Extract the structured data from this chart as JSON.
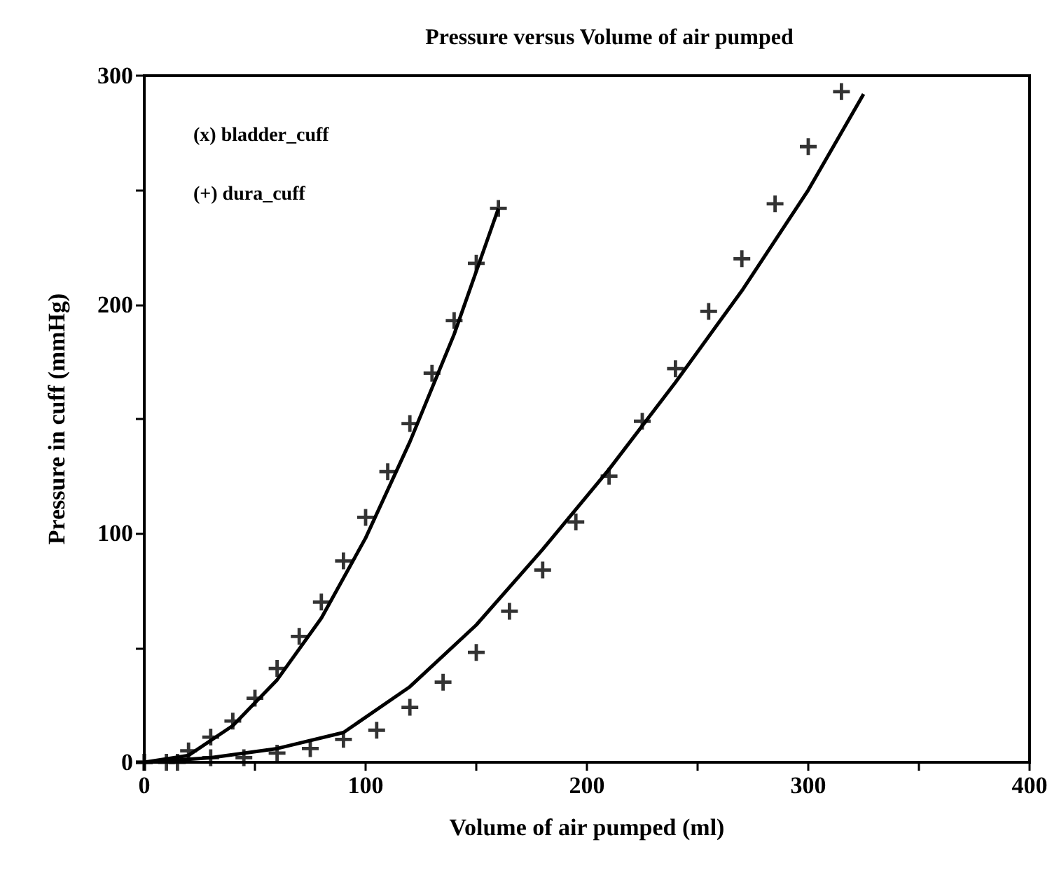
{
  "chart_data": {
    "type": "scatter",
    "title": "Pressure versus Volume of air pumped",
    "xlabel": "Volume of air pumped (ml)",
    "ylabel": "Pressure in cuff (mmHg)",
    "annotations": [
      "(x) bladder_cuff",
      "(+) dura_cuff"
    ],
    "xlim": [
      0,
      400
    ],
    "xticks": [
      0,
      {
        "value": 50,
        "label": null
      },
      100,
      {
        "value": 150,
        "label": null
      },
      200,
      {
        "value": 250,
        "label": null
      },
      300,
      {
        "value": 350,
        "label": null
      },
      400
    ],
    "ylim": [
      0,
      300
    ],
    "yticks": [
      0,
      {
        "value": 50,
        "label": null
      },
      100,
      {
        "value": 150,
        "label": null
      },
      200,
      {
        "value": 250,
        "label": null
      },
      300
    ],
    "grid": false,
    "marker": "cross",
    "series": [
      {
        "color": "#000000",
        "x": [
          0,
          15,
          30,
          45,
          60,
          75,
          90,
          105,
          120,
          135,
          150,
          165,
          180,
          195,
          210,
          225,
          240,
          255,
          270,
          285,
          300,
          315
        ],
        "values": [
          0,
          0,
          2,
          2,
          4,
          6,
          10,
          14,
          24,
          35,
          48,
          66,
          84,
          105,
          125,
          149,
          172,
          197,
          220,
          244,
          269,
          293
        ]
      },
      {
        "color": "#000000",
        "x": [
          0,
          10,
          20,
          30,
          40,
          50,
          60,
          70,
          80,
          90,
          100,
          110,
          120,
          130,
          140,
          150,
          160
        ],
        "values": [
          0,
          0,
          5,
          11,
          18,
          28,
          41,
          55,
          70,
          88,
          107,
          127,
          148,
          170,
          193,
          218,
          242
        ]
      },
      {
        "type": "line",
        "color": "#000000",
        "marker": "none",
        "x": [
          0,
          30,
          60,
          90,
          120,
          150,
          180,
          210,
          240,
          270,
          300,
          325
        ],
        "values": [
          0,
          2,
          6,
          13,
          33,
          60,
          93,
          128,
          166,
          206,
          250,
          292
        ]
      },
      {
        "type": "line",
        "color": "#000000",
        "marker": "none",
        "x": [
          0,
          20,
          40,
          60,
          80,
          100,
          120,
          140,
          160
        ],
        "values": [
          0,
          3,
          16,
          36,
          63,
          98,
          140,
          187,
          242
        ]
      }
    ]
  }
}
